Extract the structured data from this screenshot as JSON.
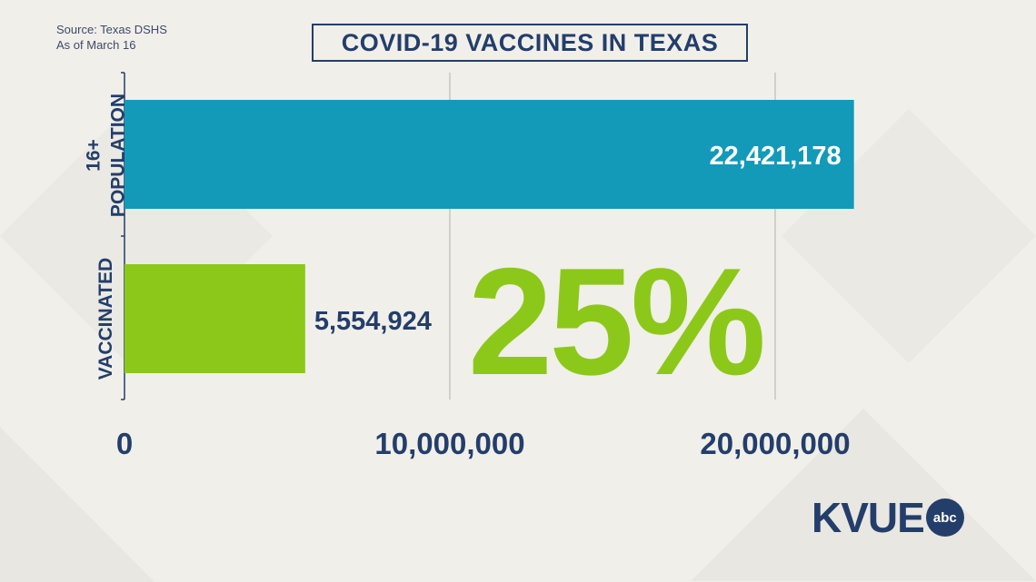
{
  "source_lines": [
    "Source: Texas DSHS",
    "As of March 16"
  ],
  "title": "COVID-19 VACCINES IN TEXAS",
  "logo": {
    "text": "KVUE",
    "badge": "abc"
  },
  "colors": {
    "navy": "#233e6b",
    "population_bar": "#129ab8",
    "vaccinated_bar": "#8cc81a",
    "grid": "#c8c6c0"
  },
  "chart_data": {
    "type": "bar",
    "orientation": "horizontal",
    "title": "COVID-19 VACCINES IN TEXAS",
    "categories": [
      "16+ POPULATION",
      "VACCINATED"
    ],
    "category_label_lines": [
      [
        "16+",
        "POPULATION"
      ],
      [
        "VACCINATED"
      ]
    ],
    "values": [
      22421178,
      5554924
    ],
    "value_labels": [
      "22,421,178",
      "5,554,924"
    ],
    "xlim": [
      0,
      20000000
    ],
    "x_ticks": [
      0,
      10000000,
      20000000
    ],
    "x_tick_labels": [
      "0",
      "10,000,000",
      "20,000,000"
    ],
    "grid": true,
    "annotation": "25%"
  }
}
